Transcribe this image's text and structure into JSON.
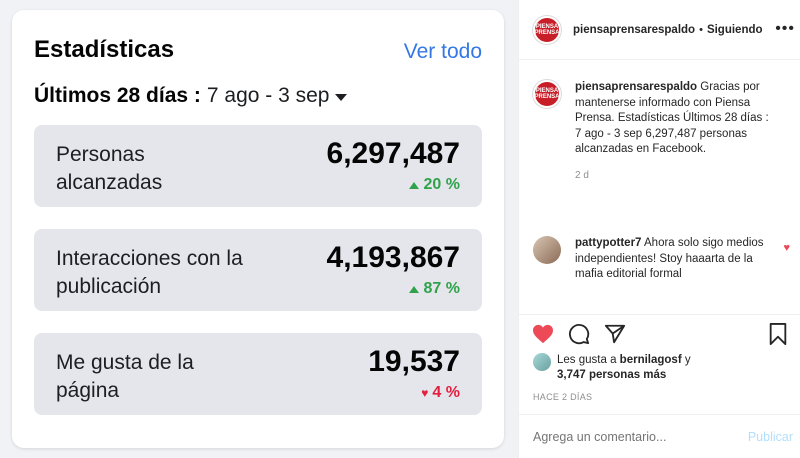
{
  "stats": {
    "title": "Estadísticas",
    "see_all": "Ver todo",
    "period_label": "Últimos 28 días :",
    "date_range": "7 ago - 3 sep",
    "metrics": [
      {
        "label": "Personas alcanzadas",
        "value": "6,297,487",
        "change": "20 %",
        "direction": "up"
      },
      {
        "label": "Interacciones con la publicación",
        "value": "4,193,867",
        "change": "87 %",
        "direction": "up"
      },
      {
        "label": "Me gusta de la página",
        "value": "19,537",
        "change": "4 %",
        "direction": "down"
      }
    ]
  },
  "post": {
    "author": "piensaprensarespaldo",
    "following": "Siguiendo",
    "avatar_text": "PIENSA PRENSA",
    "caption_user": "piensaprensarespaldo",
    "caption": "Gracias por mantenerse informado con Piensa Prensa. Estadísticas Últimos 28 días : 7 ago - 3 sep 6,297,487 personas alcanzadas en Facebook.",
    "caption_time": "2 d",
    "comments": [
      {
        "user": "pattypotter7",
        "text": "Ahora solo sigo medios independientes! Stoy haaarta de la mafia editorial formal"
      }
    ],
    "likes_prefix": "Les gusta a",
    "likes_user": "bernilagosf",
    "likes_and": "y",
    "likes_count": "3,747 personas más",
    "posted": "HACE 2 DÍAS",
    "comment_placeholder": "Agrega un comentario...",
    "publish": "Publicar"
  },
  "colors": {
    "up": "#31a24c",
    "down": "#e41e3f",
    "link": "#3578e5",
    "like": "#ed4956"
  }
}
